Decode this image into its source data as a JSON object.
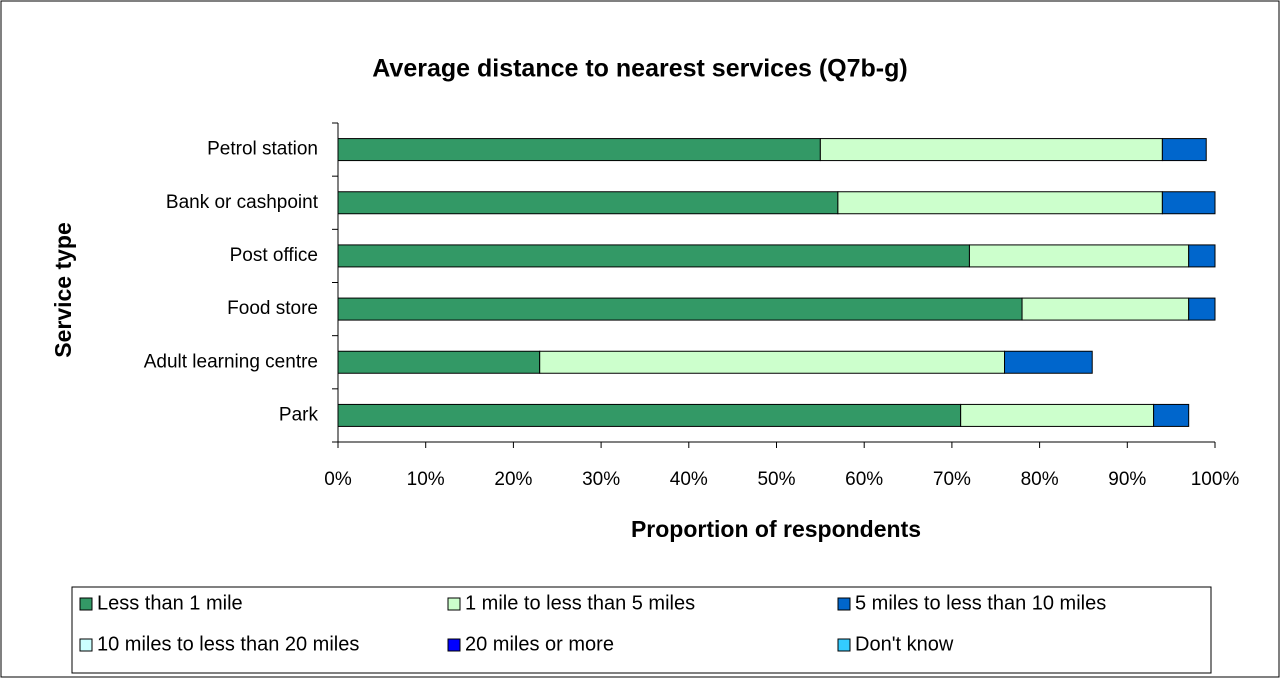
{
  "chart_data": {
    "type": "stacked_bar_horizontal",
    "title": "Average distance to nearest services (Q7b-g)",
    "y_label": "Service type",
    "x_label": "Proportion of respondents",
    "categories": [
      "Petrol station",
      "Bank or cashpoint",
      "Post office",
      "Food store",
      "Adult learning centre",
      "Park"
    ],
    "series": [
      {
        "name": "Less than 1 mile",
        "color": "#339966",
        "values": [
          55,
          57,
          72,
          78,
          23,
          71
        ]
      },
      {
        "name": "1 mile to less than 5 miles",
        "color": "#ccffcc",
        "values": [
          39,
          37,
          25,
          19,
          53,
          22
        ]
      },
      {
        "name": "5 miles to less than 10 miles",
        "color": "#0066cc",
        "values": [
          5,
          6,
          3,
          3,
          10,
          4
        ]
      },
      {
        "name": "10 miles to less than 20 miles",
        "color": "#ccffff",
        "values": [
          0,
          0,
          0,
          0,
          0,
          0
        ]
      },
      {
        "name": "20 miles or more",
        "color": "#0000ff",
        "values": [
          0,
          0,
          0,
          0,
          0,
          0
        ]
      },
      {
        "name": "Don't know",
        "color": "#33ccff",
        "values": [
          0,
          0,
          0,
          0,
          0,
          0
        ]
      }
    ],
    "xlim": [
      0,
      100
    ],
    "xticks": [
      {
        "value": 0,
        "label": "0%"
      },
      {
        "value": 10,
        "label": "10%"
      },
      {
        "value": 20,
        "label": "20%"
      },
      {
        "value": 30,
        "label": "30%"
      },
      {
        "value": 40,
        "label": "40%"
      },
      {
        "value": 50,
        "label": "50%"
      },
      {
        "value": 60,
        "label": "60%"
      },
      {
        "value": 70,
        "label": "70%"
      },
      {
        "value": 80,
        "label": "80%"
      },
      {
        "value": 90,
        "label": "90%"
      },
      {
        "value": 100,
        "label": "100%"
      }
    ],
    "legend": "bottom"
  }
}
